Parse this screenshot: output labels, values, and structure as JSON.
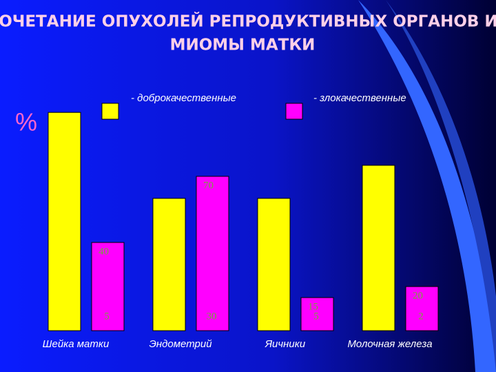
{
  "chart_data": {
    "type": "bar",
    "title": [
      "СОЧЕТАНИЕ ОПУХОЛЕЙ РЕПРОДУКТИВНЫХ ОРГАНОВ И",
      "МИОМЫ МАТКИ"
    ],
    "ylabel": "%",
    "categories": [
      "Шейка матки",
      "Эндометрий",
      "Яичники",
      "Молочная железа"
    ],
    "series": [
      {
        "name": "- доброкачественные",
        "color": "#ffff00",
        "values": [
          99,
          60,
          60,
          75
        ]
      },
      {
        "name": "- злокачественные",
        "color": "#ff00ff",
        "values": [
          40,
          70,
          15,
          20
        ]
      }
    ],
    "annotations": [
      "5",
      "30",
      "5",
      "2"
    ],
    "ylim": [
      0,
      100
    ]
  }
}
